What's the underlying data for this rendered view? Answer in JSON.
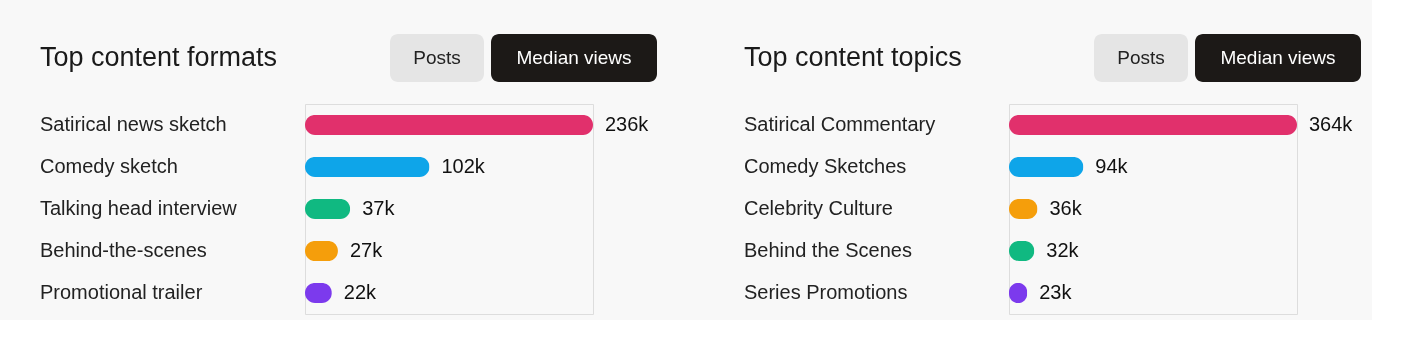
{
  "chart_data": [
    {
      "type": "bar",
      "orientation": "horizontal",
      "title": "Top content formats",
      "annotations": [
        "Posts",
        "Median views"
      ],
      "categories": [
        "Satirical news sketch",
        "Comedy sketch",
        "Talking head interview",
        "Behind-the-scenes",
        "Promotional trailer"
      ],
      "values": [
        236,
        102,
        37,
        27,
        22
      ],
      "value_labels": [
        "236k",
        "102k",
        "37k",
        "27k",
        "22k"
      ],
      "colors": [
        "#e1306c",
        "#0ea5e9",
        "#10b981",
        "#f59e0b",
        "#7c3aed"
      ],
      "grid": false
    },
    {
      "type": "bar",
      "orientation": "horizontal",
      "title": "Top content topics",
      "annotations": [
        "Posts",
        "Median views"
      ],
      "categories": [
        "Satirical Commentary",
        "Comedy Sketches",
        "Celebrity Culture",
        "Behind the Scenes",
        "Series Promotions"
      ],
      "values": [
        364,
        94,
        36,
        32,
        23
      ],
      "value_labels": [
        "364k",
        "94k",
        "36k",
        "32k",
        "23k"
      ],
      "colors": [
        "#e1306c",
        "#0ea5e9",
        "#f59e0b",
        "#10b981",
        "#7c3aed"
      ],
      "grid": false
    }
  ]
}
